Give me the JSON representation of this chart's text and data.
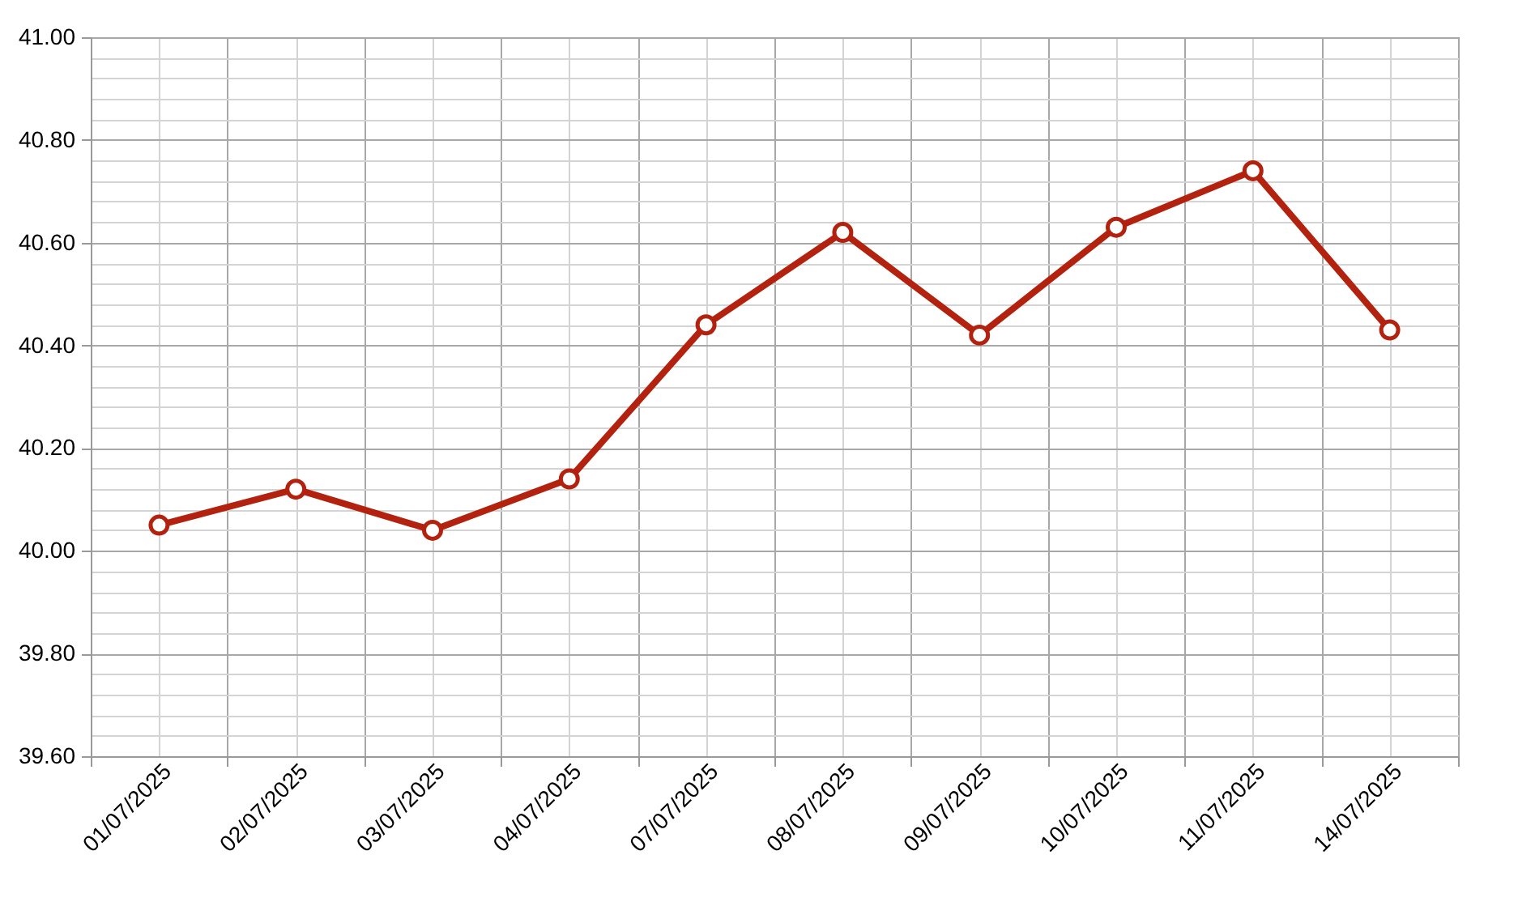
{
  "chart_data": {
    "type": "line",
    "categories": [
      "01/07/2025",
      "02/07/2025",
      "03/07/2025",
      "04/07/2025",
      "07/07/2025",
      "08/07/2025",
      "09/07/2025",
      "10/07/2025",
      "11/07/2025",
      "14/07/2025"
    ],
    "series": [
      {
        "color": "#b3210f",
        "values": [
          40.05,
          40.12,
          40.04,
          40.14,
          40.44,
          40.62,
          40.42,
          40.63,
          40.74,
          40.43
        ]
      }
    ],
    "ylim": [
      39.6,
      41.0
    ],
    "yticks": [
      {
        "value": 39.6,
        "label": "39.60"
      },
      {
        "value": 39.64,
        "label": null
      },
      {
        "value": 39.68,
        "label": null
      },
      {
        "value": 39.72,
        "label": null
      },
      {
        "value": 39.76,
        "label": null
      },
      {
        "value": 39.8,
        "label": "39.80"
      },
      {
        "value": 39.84,
        "label": null
      },
      {
        "value": 39.88,
        "label": null
      },
      {
        "value": 39.92,
        "label": null
      },
      {
        "value": 39.96,
        "label": null
      },
      {
        "value": 40.0,
        "label": "40.00"
      },
      {
        "value": 40.04,
        "label": null
      },
      {
        "value": 40.08,
        "label": null
      },
      {
        "value": 40.12,
        "label": null
      },
      {
        "value": 40.16,
        "label": null
      },
      {
        "value": 40.2,
        "label": "40.20"
      },
      {
        "value": 40.24,
        "label": null
      },
      {
        "value": 40.28,
        "label": null
      },
      {
        "value": 40.32,
        "label": null
      },
      {
        "value": 40.36,
        "label": null
      },
      {
        "value": 40.4,
        "label": "40.40"
      },
      {
        "value": 40.44,
        "label": null
      },
      {
        "value": 40.48,
        "label": null
      },
      {
        "value": 40.52,
        "label": null
      },
      {
        "value": 40.56,
        "label": null
      },
      {
        "value": 40.6,
        "label": "40.60"
      },
      {
        "value": 40.64,
        "label": null
      },
      {
        "value": 40.68,
        "label": null
      },
      {
        "value": 40.72,
        "label": null
      },
      {
        "value": 40.76,
        "label": null
      },
      {
        "value": 40.8,
        "label": "40.80"
      },
      {
        "value": 40.84,
        "label": null
      },
      {
        "value": 40.88,
        "label": null
      },
      {
        "value": 40.92,
        "label": null
      },
      {
        "value": 40.96,
        "label": null
      },
      {
        "value": 41.0,
        "label": "41.00"
      }
    ],
    "grid": true,
    "marker": "circle",
    "line_style": "solid",
    "legend": false
  }
}
